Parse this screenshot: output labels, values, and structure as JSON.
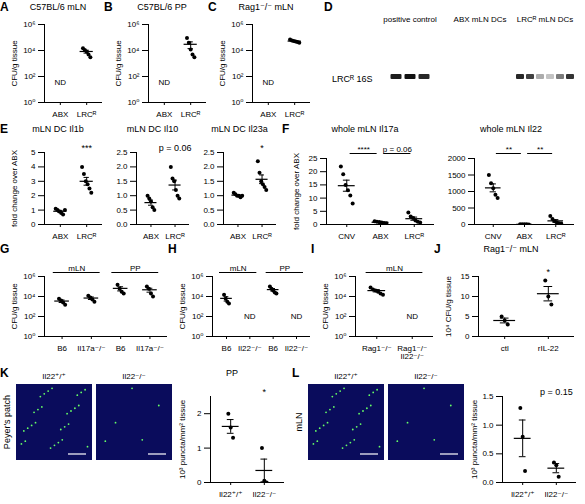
{
  "chart_data": [
    {
      "panel": "A",
      "type": "scatter",
      "title": "C57BL/6 mLN",
      "y_label": "CFU/g tissue",
      "log": "y",
      "categories": [
        "ABX",
        "LRCᴿ"
      ],
      "points": [
        null,
        [
          15000,
          11000,
          8000,
          5000,
          3000
        ]
      ],
      "mean": [
        null,
        8400
      ],
      "error": [
        null,
        2100
      ],
      "category_notes": [
        "ND",
        null
      ],
      "ylim": [
        1,
        1000000
      ],
      "yticks": [
        {
          "value": 1,
          "label": "10⁰"
        },
        {
          "value": 100,
          "label": "10²"
        },
        {
          "value": 10000,
          "label": "10⁴"
        },
        {
          "value": 1000000,
          "label": "10⁶"
        }
      ]
    },
    {
      "panel": "B",
      "type": "scatter",
      "title": "C57BL/6 PP",
      "y_label": "CFU/g tissue",
      "log": "y",
      "categories": [
        "ABX",
        "LRCᴿ"
      ],
      "points": [
        null,
        [
          90000,
          40000,
          12000,
          5000,
          3000
        ]
      ],
      "mean": [
        null,
        30000
      ],
      "error": [
        null,
        16000
      ],
      "category_notes": [
        "ND",
        null
      ],
      "ylim": [
        1,
        1000000
      ],
      "yticks": [
        {
          "value": 1,
          "label": "10⁰"
        },
        {
          "value": 100,
          "label": "10²"
        },
        {
          "value": 10000,
          "label": "10⁴"
        },
        {
          "value": 1000000,
          "label": "10⁶"
        }
      ]
    },
    {
      "panel": "C",
      "type": "scatter",
      "title": "Rag1⁻/⁻ mLN",
      "y_label": "CFU/g tissue",
      "log": "y",
      "categories": [
        "ABX",
        "LRCᴿ"
      ],
      "points": [
        null,
        [
          70000,
          60000,
          55000,
          50000,
          45000,
          40000
        ]
      ],
      "mean": [
        null,
        53000
      ],
      "error": [
        null,
        4500
      ],
      "category_notes": [
        "ND",
        null
      ],
      "ylim": [
        1,
        1000000
      ],
      "yticks": [
        {
          "value": 1,
          "label": "10⁰"
        },
        {
          "value": 100,
          "label": "10²"
        },
        {
          "value": 10000,
          "label": "10⁴"
        },
        {
          "value": 1000000,
          "label": "10⁶"
        }
      ]
    },
    {
      "panel": "E",
      "type": "scatter",
      "title": "mLN DC Il1b",
      "y_label": "fold change over ABX",
      "categories": [
        "ABX",
        "LRCᴿ"
      ],
      "points": [
        [
          1.1,
          1.0,
          0.9,
          0.8,
          0.7,
          1.0
        ],
        [
          4.0,
          3.5,
          3.0,
          2.8,
          2.5,
          2.2
        ]
      ],
      "mean": [
        0.92,
        3.0
      ],
      "error": [
        0.06,
        0.27
      ],
      "annotations": [
        {
          "text": "***",
          "category": "LRCᴿ"
        }
      ],
      "ylim": [
        0,
        5
      ],
      "yticks": [
        0,
        1,
        2,
        3,
        4,
        5
      ]
    },
    {
      "type": "scatter",
      "title": "mLN DC Il10",
      "categories": [
        "ABX",
        "LRCᴿ"
      ],
      "points": [
        [
          1.0,
          0.9,
          0.8,
          0.6,
          0.5
        ],
        [
          2.0,
          1.6,
          1.5,
          1.2,
          1.0,
          0.9
        ]
      ],
      "mean": [
        0.76,
        1.37
      ],
      "error": [
        0.09,
        0.17
      ],
      "annotations": [
        {
          "text": "p = 0.06",
          "category": "LRCᴿ"
        }
      ],
      "ylim": [
        0,
        2.5
      ],
      "yticks": [
        {
          "value": 0,
          "label": "0.0"
        },
        0.5,
        {
          "value": 1,
          "label": "1.0"
        },
        1.5,
        {
          "value": 2,
          "label": "2.0"
        },
        2.5
      ]
    },
    {
      "type": "scatter",
      "title": "mLN DC Il23a",
      "categories": [
        "ABX",
        "LRCᴿ"
      ],
      "points": [
        [
          1.1,
          1.05,
          1.0,
          1.0,
          0.95,
          1.0
        ],
        [
          2.2,
          1.8,
          1.5,
          1.4,
          1.3,
          1.2
        ]
      ],
      "mean": [
        1.02,
        1.57
      ],
      "error": [
        0.02,
        0.15
      ],
      "annotations": [
        {
          "text": "*",
          "category": "LRCᴿ"
        }
      ],
      "ylim": [
        0,
        2.5
      ],
      "yticks": [
        {
          "value": 0,
          "label": "0.0"
        },
        0.5,
        {
          "value": 1,
          "label": "1.0"
        },
        1.5,
        {
          "value": 2,
          "label": "2.0"
        },
        2.5
      ]
    },
    {
      "panel": "F",
      "type": "scatter",
      "title": "whole mLN Il17a",
      "y_label": "fold change over ABX",
      "categories": [
        "CNV",
        "ABX",
        "LRCᴿ"
      ],
      "points": [
        [
          22,
          19,
          15,
          13,
          11,
          8
        ],
        [
          1.2,
          1.0,
          0.9,
          0.8,
          0.6,
          0.5
        ],
        [
          4.5,
          3,
          2.5,
          1.5,
          1,
          0.8
        ]
      ],
      "mean": [
        14.7,
        0.83,
        2.2
      ],
      "error": [
        2.1,
        0.1,
        0.6
      ],
      "annotations": [
        {
          "text": "****",
          "from": "CNV",
          "to": "ABX"
        },
        {
          "text": "p = 0.06",
          "from": "ABX",
          "to": "LRCᴿ"
        }
      ],
      "ylim": [
        0,
        25
      ],
      "yticks": [
        0,
        5,
        10,
        15,
        20,
        25
      ]
    },
    {
      "type": "scatter",
      "title": "whole mLN Il22",
      "categories": [
        "CNV",
        "ABX",
        "LRCᴿ"
      ],
      "points": [
        [
          1500,
          1250,
          1100,
          900,
          800
        ],
        [
          8,
          6,
          5,
          4,
          3
        ],
        [
          260,
          170,
          100,
          60,
          40,
          30
        ]
      ],
      "mean": [
        1110,
        5,
        110
      ],
      "error": [
        120,
        1,
        37
      ],
      "annotations": [
        {
          "text": "**",
          "from": "CNV",
          "to": "ABX"
        },
        {
          "text": "**",
          "from": "ABX",
          "to": "LRCᴿ"
        }
      ],
      "ylim": [
        0,
        2000
      ],
      "yticks": [
        0,
        500,
        1000,
        1500,
        2000
      ]
    },
    {
      "panel": "G",
      "type": "scatter",
      "y_label": "CFU/g tissue",
      "log": "y",
      "categories": [
        "B6",
        "Il17a⁻/⁻",
        "B6",
        "Il17a⁻/⁻"
      ],
      "groups": [
        "mLN",
        "mLN",
        "PP",
        "PP"
      ],
      "points": [
        [
          6000,
          4000,
          2500,
          1500
        ],
        [
          12000,
          8000,
          5000,
          3000
        ],
        [
          150000,
          60000,
          30000,
          20000
        ],
        [
          100000,
          60000,
          20000,
          10000
        ]
      ],
      "mean": [
        3500,
        7000,
        65000,
        47000
      ],
      "error": [
        1000,
        2000,
        29000,
        20000
      ],
      "ylim": [
        1,
        1000000
      ],
      "yticks": [
        {
          "value": 1,
          "label": "10⁰"
        },
        {
          "value": 100,
          "label": "10²"
        },
        {
          "value": 10000,
          "label": "10⁴"
        },
        {
          "value": 1000000,
          "label": "10⁶"
        }
      ]
    },
    {
      "panel": "H",
      "type": "scatter",
      "y_label": "CFU/g tissue",
      "log": "y",
      "categories": [
        "B6",
        "Il22⁻/⁻",
        "B6",
        "Il22⁻/⁻"
      ],
      "groups": [
        "mLN",
        "mLN",
        "PP",
        "PP"
      ],
      "points": [
        [
          15000,
          6000,
          3000,
          2000
        ],
        null,
        [
          100000,
          60000,
          40000,
          25000,
          20000
        ],
        null
      ],
      "mean": [
        6500,
        null,
        49000,
        null
      ],
      "error": [
        3000,
        null,
        14000,
        null
      ],
      "category_notes": [
        null,
        "ND",
        null,
        "ND"
      ],
      "ylim": [
        1,
        1000000
      ],
      "yticks": [
        {
          "value": 1,
          "label": "10⁰"
        },
        {
          "value": 100,
          "label": "10²"
        },
        {
          "value": 10000,
          "label": "10⁴"
        },
        {
          "value": 1000000,
          "label": "10⁶"
        }
      ]
    },
    {
      "panel": "I",
      "type": "scatter",
      "y_label": "CFU/g tissue",
      "log": "y",
      "categories": [
        "Rag1⁻/⁻",
        "Rag1⁻/⁻ Il22⁻/⁻"
      ],
      "groups": [
        "mLN",
        "mLN"
      ],
      "points": [
        [
          80000,
          50000,
          40000,
          30000,
          20000,
          15000
        ],
        null
      ],
      "mean": [
        39000,
        null
      ],
      "error": [
        10000,
        null
      ],
      "category_notes": [
        null,
        "ND"
      ],
      "ylim": [
        1,
        1000000
      ],
      "yticks": [
        {
          "value": 1,
          "label": "10⁰"
        },
        {
          "value": 100,
          "label": "10²"
        },
        {
          "value": 10000,
          "label": "10⁴"
        },
        {
          "value": 1000000,
          "label": "10⁶"
        }
      ]
    },
    {
      "panel": "J",
      "type": "scatter",
      "title": "Rag1⁻/⁻ mLN",
      "y_label": "10⁴ CFU/g tissue",
      "categories": [
        "ctl",
        "rIL-22"
      ],
      "points": [
        [
          5,
          4,
          3
        ],
        [
          14,
          10,
          8
        ]
      ],
      "mean": [
        4,
        10.7
      ],
      "error": [
        0.6,
        1.8
      ],
      "annotations": [
        {
          "text": "*",
          "category": "rIL-22"
        }
      ],
      "ylim": [
        0,
        15
      ],
      "yticks": [
        0,
        5,
        10,
        15
      ]
    },
    {
      "type": "scatter",
      "title": "PP",
      "y_label": "10³ puncta/mm² tissue",
      "categories": [
        "Il22⁺/⁺",
        "Il22⁻/⁻"
      ],
      "points": [
        [
          2.0,
          1.6,
          1.3
        ],
        [
          1.0,
          0.05,
          0.0
        ]
      ],
      "mean": [
        1.63,
        0.35
      ],
      "error": [
        0.2,
        0.33
      ],
      "annotations": [
        {
          "text": "*",
          "category": "Il22⁻/⁻"
        }
      ],
      "ylim": [
        0,
        2.5
      ],
      "yticks": [
        0,
        1,
        2
      ]
    },
    {
      "type": "scatter",
      "y_label": "10³ puncta/mm² tissue",
      "categories": [
        "Il22⁺/⁺",
        "Il22⁻/⁻"
      ],
      "points": [
        [
          1.3,
          0.8,
          0.2
        ],
        [
          0.35,
          0.3,
          0.1
        ]
      ],
      "mean": [
        0.77,
        0.25
      ],
      "error": [
        0.32,
        0.08
      ],
      "annotations": [
        {
          "text": "p = 0.15",
          "category": "Il22⁻/⁻"
        }
      ],
      "ylim": [
        0,
        1.5
      ],
      "yticks": [
        {
          "value": 0,
          "label": "0.0"
        },
        0.5,
        {
          "value": 1,
          "label": "1.0"
        },
        1.5
      ]
    }
  ],
  "gel": {
    "panel": "D",
    "title": "LRCᴿ 16S",
    "lanes": [
      "positive control",
      "ABX mLN DCs",
      "LRCᴿ mLN DCs"
    ]
  },
  "images": [
    {
      "panel": "K",
      "label": "Peyer's patch",
      "titles": [
        "Il22⁺/⁺",
        "Il22⁻/⁻"
      ]
    },
    {
      "panel": "L",
      "label": "mLN",
      "titles": [
        "Il22⁺/⁺",
        "Il22⁻/⁻"
      ]
    }
  ]
}
